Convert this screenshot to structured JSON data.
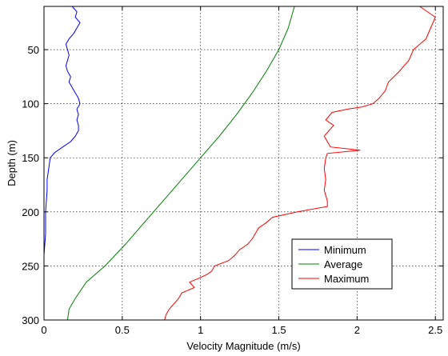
{
  "chart_data": {
    "type": "line",
    "title": "",
    "xlabel": "Velocity Magnitude (m/s)",
    "ylabel": "Depth (m)",
    "xlim": [
      0,
      2.55
    ],
    "ylim": [
      300,
      10
    ],
    "y_reversed": true,
    "xticks": [
      0,
      0.5,
      1,
      1.5,
      2,
      2.5
    ],
    "xtick_labels": [
      "0",
      "0.5",
      "1",
      "1.5",
      "2",
      "2.5"
    ],
    "yticks": [
      50,
      100,
      150,
      200,
      250,
      300
    ],
    "ytick_labels": [
      "50",
      "100",
      "150",
      "200",
      "250",
      "300"
    ],
    "grid": true,
    "legend_position": "lower-right",
    "series": [
      {
        "name": "Minimum",
        "color": "#0000ff",
        "points": [
          [
            0.18,
            10
          ],
          [
            0.21,
            15
          ],
          [
            0.2,
            20
          ],
          [
            0.23,
            25
          ],
          [
            0.21,
            30
          ],
          [
            0.19,
            35
          ],
          [
            0.16,
            40
          ],
          [
            0.14,
            45
          ],
          [
            0.15,
            50
          ],
          [
            0.16,
            55
          ],
          [
            0.15,
            60
          ],
          [
            0.14,
            65
          ],
          [
            0.15,
            70
          ],
          [
            0.17,
            75
          ],
          [
            0.16,
            80
          ],
          [
            0.18,
            85
          ],
          [
            0.2,
            90
          ],
          [
            0.22,
            95
          ],
          [
            0.23,
            100
          ],
          [
            0.21,
            105
          ],
          [
            0.22,
            110
          ],
          [
            0.21,
            115
          ],
          [
            0.22,
            120
          ],
          [
            0.22,
            125
          ],
          [
            0.2,
            130
          ],
          [
            0.17,
            135
          ],
          [
            0.12,
            140
          ],
          [
            0.07,
            145
          ],
          [
            0.04,
            150
          ],
          [
            0.03,
            160
          ],
          [
            0.02,
            170
          ],
          [
            0.02,
            180
          ],
          [
            0.01,
            200
          ],
          [
            0.01,
            220
          ],
          [
            0.0,
            240
          ],
          [
            0.0,
            260
          ],
          [
            0.0,
            280
          ],
          [
            0.0,
            300
          ]
        ]
      },
      {
        "name": "Average",
        "color": "#008000",
        "points": [
          [
            1.6,
            10
          ],
          [
            1.56,
            30
          ],
          [
            1.5,
            50
          ],
          [
            1.42,
            70
          ],
          [
            1.33,
            90
          ],
          [
            1.23,
            110
          ],
          [
            1.12,
            130
          ],
          [
            1.0,
            150
          ],
          [
            0.88,
            170
          ],
          [
            0.76,
            190
          ],
          [
            0.64,
            210
          ],
          [
            0.52,
            230
          ],
          [
            0.39,
            250
          ],
          [
            0.27,
            265
          ],
          [
            0.2,
            280
          ],
          [
            0.16,
            290
          ],
          [
            0.15,
            300
          ]
        ]
      },
      {
        "name": "Maximum",
        "color": "#ff0000",
        "points": [
          [
            2.4,
            10
          ],
          [
            2.5,
            20
          ],
          [
            2.47,
            30
          ],
          [
            2.44,
            40
          ],
          [
            2.36,
            50
          ],
          [
            2.33,
            60
          ],
          [
            2.27,
            70
          ],
          [
            2.2,
            80
          ],
          [
            2.18,
            88
          ],
          [
            2.14,
            95
          ],
          [
            2.1,
            100
          ],
          [
            2.03,
            103
          ],
          [
            1.94,
            105
          ],
          [
            1.84,
            108
          ],
          [
            1.8,
            115
          ],
          [
            1.85,
            120
          ],
          [
            1.82,
            125
          ],
          [
            1.79,
            130
          ],
          [
            1.81,
            135
          ],
          [
            1.83,
            140
          ],
          [
            2.02,
            143
          ],
          [
            1.81,
            146
          ],
          [
            1.8,
            150
          ],
          [
            1.79,
            160
          ],
          [
            1.8,
            170
          ],
          [
            1.79,
            180
          ],
          [
            1.81,
            190
          ],
          [
            1.81,
            195
          ],
          [
            1.62,
            200
          ],
          [
            1.46,
            205
          ],
          [
            1.42,
            210
          ],
          [
            1.37,
            215
          ],
          [
            1.35,
            220
          ],
          [
            1.33,
            225
          ],
          [
            1.3,
            230
          ],
          [
            1.25,
            235
          ],
          [
            1.22,
            240
          ],
          [
            1.18,
            245
          ],
          [
            1.09,
            250
          ],
          [
            1.07,
            255
          ],
          [
            1.04,
            258
          ],
          [
            0.98,
            262
          ],
          [
            0.93,
            265
          ],
          [
            0.96,
            270
          ],
          [
            0.88,
            275
          ],
          [
            0.86,
            280
          ],
          [
            0.83,
            285
          ],
          [
            0.8,
            290
          ],
          [
            0.78,
            295
          ],
          [
            0.77,
            300
          ]
        ]
      }
    ]
  }
}
